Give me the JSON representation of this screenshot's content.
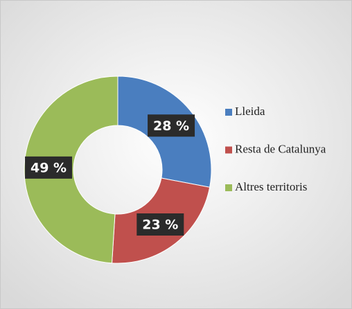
{
  "chart_data": {
    "type": "donut",
    "categories": [
      "Lleida",
      "Resta de Catalunya",
      "Altres territoris"
    ],
    "values": [
      28,
      23,
      49
    ],
    "value_labels": [
      "28 %",
      "23 %",
      "49 %"
    ],
    "colors": [
      "#4a7ebf",
      "#c0504d",
      "#9bbb59"
    ],
    "legend": "right"
  }
}
